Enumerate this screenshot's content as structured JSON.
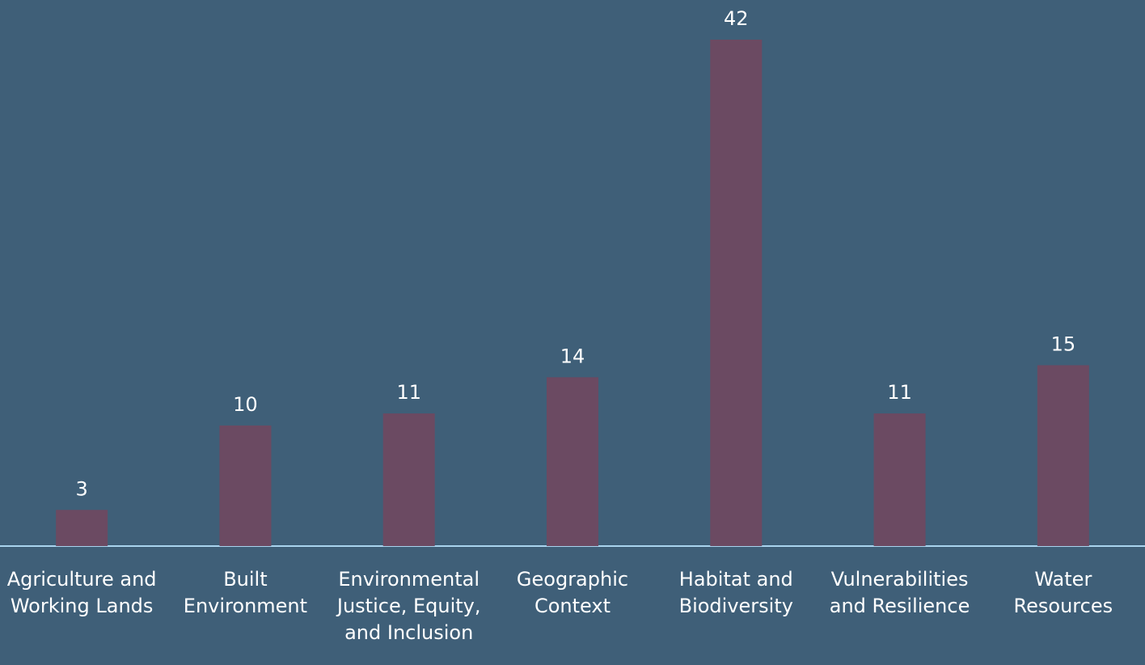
{
  "chart_data": {
    "type": "bar",
    "categories": [
      "Agriculture and Working Lands",
      "Built Environment",
      "Environmental Justice, Equity, and Inclusion",
      "Geographic Context",
      "Habitat and Biodiversity",
      "Vulnerabilities and Resilience",
      "Water Resources"
    ],
    "values": [
      3,
      10,
      11,
      14,
      42,
      11,
      15
    ],
    "color": "#6b4a62",
    "ylim": [
      0,
      42
    ]
  }
}
